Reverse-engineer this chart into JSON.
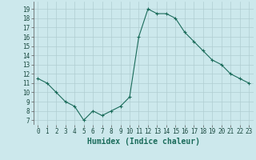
{
  "x": [
    0,
    1,
    2,
    3,
    4,
    5,
    6,
    7,
    8,
    9,
    10,
    11,
    12,
    13,
    14,
    15,
    16,
    17,
    18,
    19,
    20,
    21,
    22,
    23
  ],
  "y": [
    11.5,
    11.0,
    10.0,
    9.0,
    8.5,
    7.0,
    8.0,
    7.5,
    8.0,
    8.5,
    9.5,
    16.0,
    19.0,
    18.5,
    18.5,
    18.0,
    16.5,
    15.5,
    14.5,
    13.5,
    13.0,
    12.0,
    11.5,
    11.0
  ],
  "line_color": "#1a6b5a",
  "marker": "+",
  "marker_size": 3,
  "bg_color": "#cce8ec",
  "grid_color": "#b0cdd1",
  "xlabel": "Humidex (Indice chaleur)",
  "xlim": [
    -0.5,
    23.5
  ],
  "ylim": [
    6.5,
    19.8
  ],
  "yticks": [
    7,
    8,
    9,
    10,
    11,
    12,
    13,
    14,
    15,
    16,
    17,
    18,
    19
  ],
  "xticks": [
    0,
    1,
    2,
    3,
    4,
    5,
    6,
    7,
    8,
    9,
    10,
    11,
    12,
    13,
    14,
    15,
    16,
    17,
    18,
    19,
    20,
    21,
    22,
    23
  ],
  "tick_fontsize": 5.5,
  "xlabel_fontsize": 7,
  "linewidth": 0.8,
  "marker_edge_width": 0.8
}
